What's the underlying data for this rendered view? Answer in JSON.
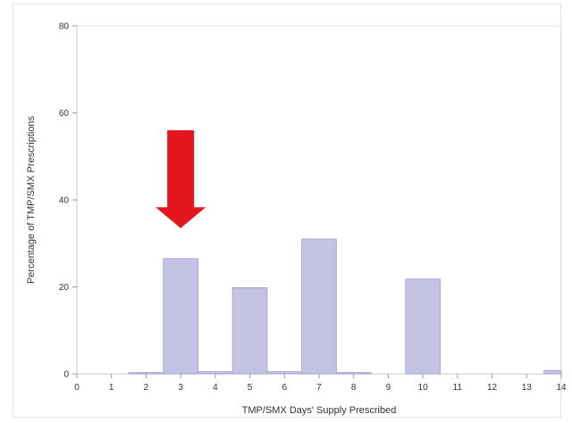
{
  "chart_data": {
    "type": "bar",
    "title": "",
    "xlabel": "TMP/SMX Days' Supply Prescribed",
    "ylabel": "Percentage of TMP/SMX Prescriptions",
    "x": [
      2,
      3,
      4,
      5,
      6,
      7,
      8,
      10,
      14
    ],
    "values": [
      0.3,
      26.5,
      0.5,
      19.8,
      0.5,
      31.0,
      0.3,
      21.8,
      0.8
    ],
    "xlim": [
      0,
      14
    ],
    "xticks": [
      0,
      1,
      2,
      3,
      4,
      5,
      6,
      7,
      8,
      9,
      10,
      11,
      12,
      13,
      14
    ],
    "ylim": [
      0,
      80
    ],
    "yticks": [
      0,
      20,
      40,
      60,
      80
    ],
    "grid": false,
    "bar_color": "#c5c3e3",
    "bar_edge_color": "#a9a6d4",
    "annotation": {
      "shape": "down-arrow",
      "color": "#e3161b",
      "points_to_x": 3
    }
  }
}
